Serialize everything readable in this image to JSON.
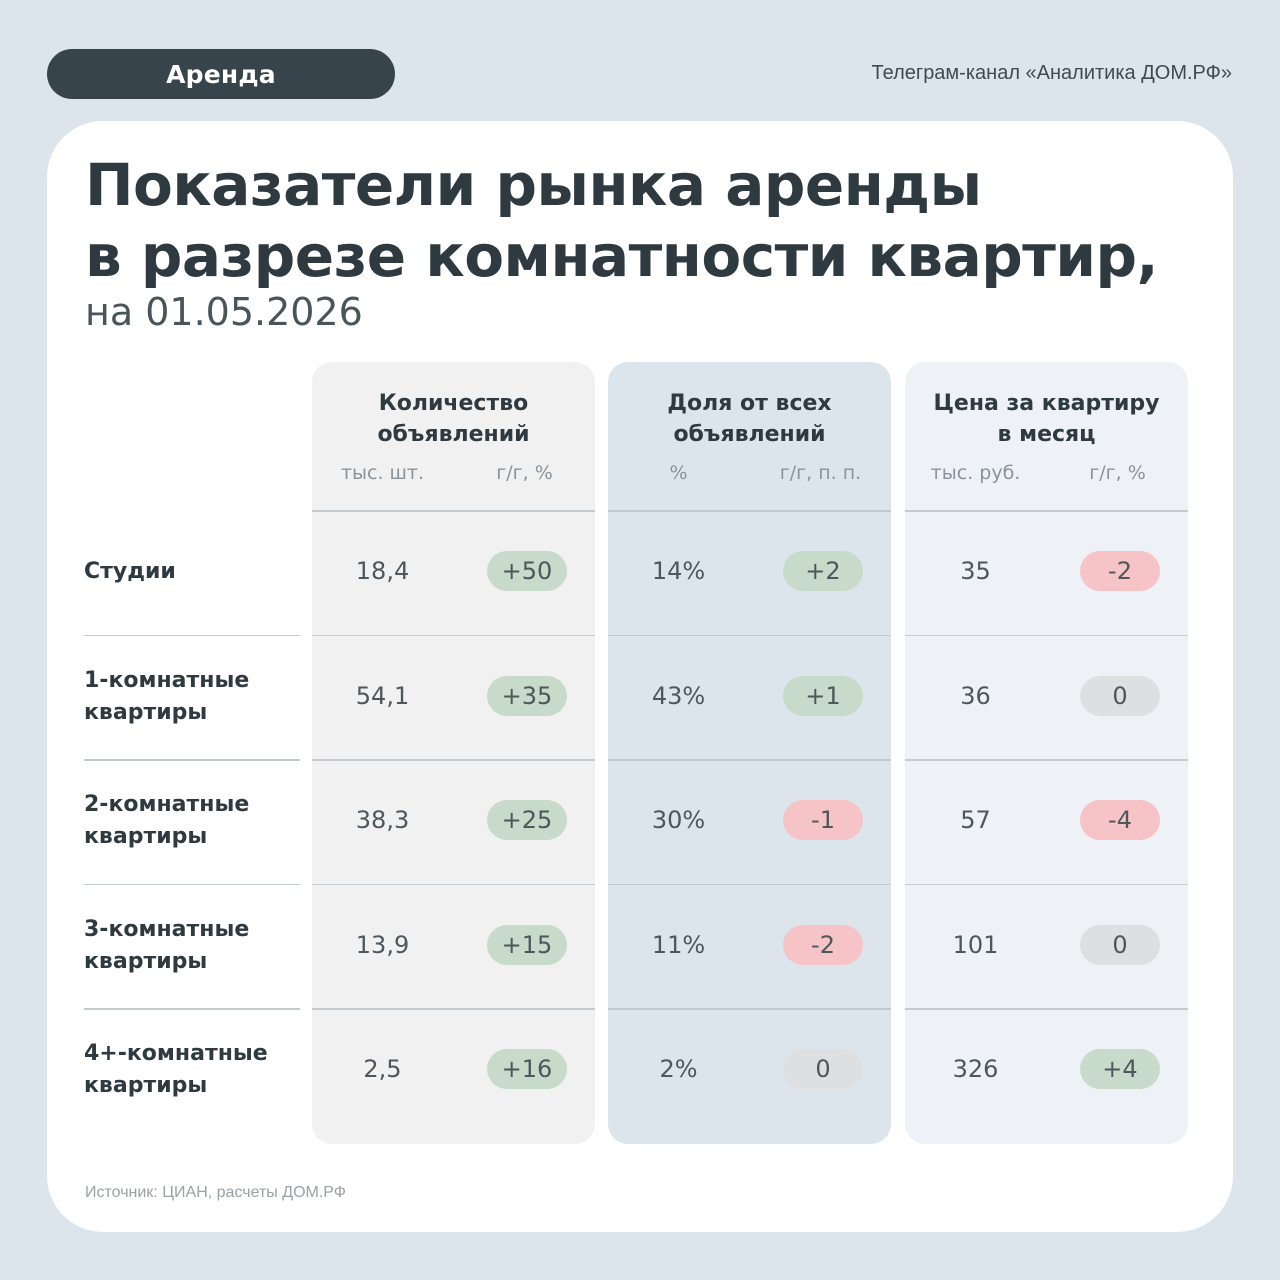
{
  "header": {
    "tag": "Аренда",
    "channel": "Телеграм-канал «Аналитика ДОМ.РФ»"
  },
  "title": {
    "line1": "Показатели рынка аренды",
    "line2": "в разрезе комнатности квартир,",
    "subtitle": "на 01.05.2026"
  },
  "columns": [
    {
      "title": "Количество\nобъявлений",
      "sub_a": "тыс. шт.",
      "sub_b": "г/г, %"
    },
    {
      "title": "Доля от всех\nобъявлений",
      "sub_a": "%",
      "sub_b": "г/г, п. п."
    },
    {
      "title": "Цена за квартиру\nв месяц",
      "sub_a": "тыс. руб.",
      "sub_b": "г/г, %"
    }
  ],
  "rows": [
    {
      "label": "Студии",
      "count": "18,4",
      "count_yoy": "+50",
      "share": "14%",
      "share_yoy": "+2",
      "price": "35",
      "price_yoy": "-2"
    },
    {
      "label": "1-комнатные\nквартиры",
      "count": "54,1",
      "count_yoy": "+35",
      "share": "43%",
      "share_yoy": "+1",
      "price": "36",
      "price_yoy": "0"
    },
    {
      "label": "2-комнатные\nквартиры",
      "count": "38,3",
      "count_yoy": "+25",
      "share": "30%",
      "share_yoy": "-1",
      "price": "57",
      "price_yoy": "-4"
    },
    {
      "label": "3-комнатные\nквартиры",
      "count": "13,9",
      "count_yoy": "+15",
      "share": "11%",
      "share_yoy": "-2",
      "price": "101",
      "price_yoy": "0"
    },
    {
      "label": "4+-комнатные\nквартиры",
      "count": "2,5",
      "count_yoy": "+16",
      "share": "2%",
      "share_yoy": "0",
      "price": "326",
      "price_yoy": "+4"
    }
  ],
  "colors": {
    "positive": "#c8dac9",
    "negative": "#f6c4c6",
    "neutral": "#dedfe0"
  },
  "source": "Источник: ЦИАН, расчеты ДОМ.РФ"
}
